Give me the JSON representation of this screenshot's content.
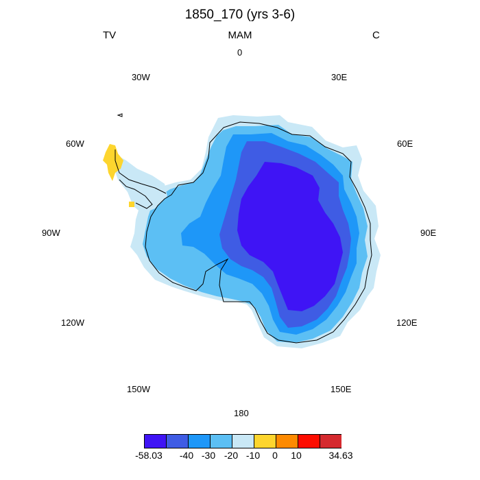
{
  "title": "1850_170 (yrs 3-6)",
  "subtitle_left": "TV",
  "subtitle_center": "MAM",
  "subtitle_right": "C",
  "longitude_labels": [
    "0",
    "30E",
    "60E",
    "90E",
    "120E",
    "150E",
    "180",
    "150W",
    "120W",
    "90W",
    "60W",
    "30W"
  ],
  "colorbar": {
    "colors": [
      "#3f14f5",
      "#3f5ce4",
      "#1e97f8",
      "#5cbff4",
      "#c9e8f6",
      "#fdd52e",
      "#fd8a00",
      "#fd0d00",
      "#d52a2f"
    ],
    "labels": [
      "-58.03",
      "-40",
      "-30",
      "-20",
      "-10",
      "0",
      "10",
      "34.63"
    ]
  },
  "map": {
    "projection": "south-polar-stereographic",
    "region": "Antarctica",
    "levels": [
      "-58.03",
      "-40",
      "-30",
      "-20",
      "-10",
      "0",
      "10",
      "34.63"
    ]
  }
}
